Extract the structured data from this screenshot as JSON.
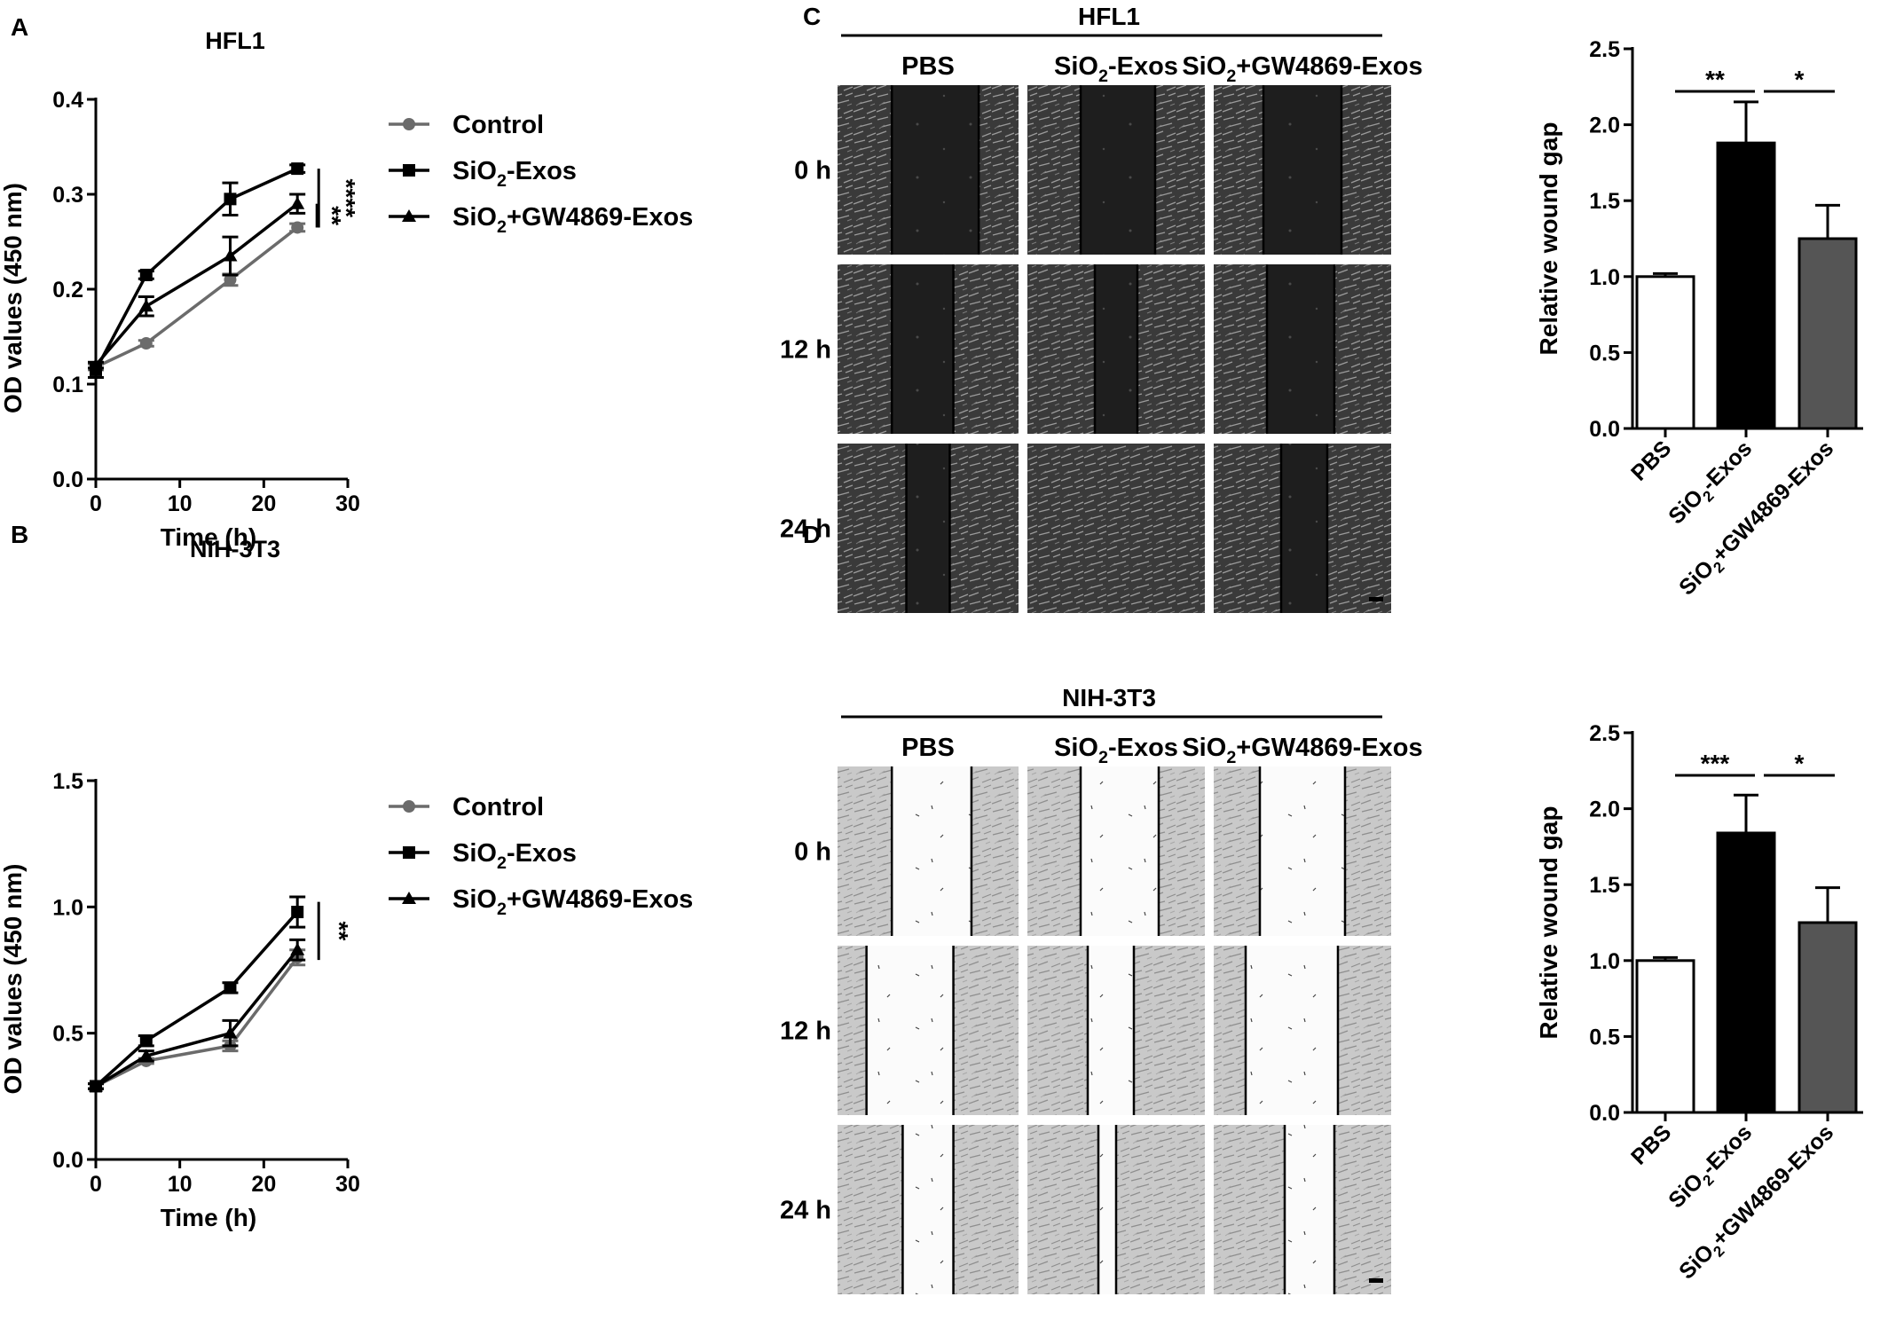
{
  "panels": {
    "A": "A",
    "B": "B",
    "C": "C",
    "D": "D"
  },
  "chart_data": [
    {
      "id": "A",
      "type": "line",
      "title": "HFL1",
      "xlabel": "Time (h)",
      "ylabel": "OD values (450 nm)",
      "xlim": [
        0,
        30
      ],
      "ylim": [
        0,
        0.4
      ],
      "xticks": [
        "0",
        "10",
        "20",
        "30"
      ],
      "yticks": [
        "0.0",
        "0.1",
        "0.2",
        "0.3",
        "0.4"
      ],
      "x": [
        0,
        6,
        16,
        24
      ],
      "series": [
        {
          "name": "Control",
          "marker": "circle",
          "color": "#6b6b6b",
          "values": [
            0.118,
            0.143,
            0.21,
            0.265
          ],
          "errors": [
            0.003,
            0.003,
            0.006,
            0.004
          ]
        },
        {
          "name": "SiO2-Exos",
          "marker": "square",
          "color": "#000000",
          "values": [
            0.115,
            0.215,
            0.295,
            0.327
          ],
          "errors": [
            0.008,
            0.004,
            0.017,
            0.004
          ]
        },
        {
          "name": "SiO2+GW4869-Exos",
          "marker": "triangle",
          "color": "#000000",
          "values": [
            0.12,
            0.182,
            0.235,
            0.29
          ],
          "errors": [
            0.003,
            0.01,
            0.02,
            0.01
          ]
        }
      ],
      "significance": [
        "****",
        "**"
      ],
      "legend": "right"
    },
    {
      "id": "B",
      "type": "line",
      "title": "NIH-3T3",
      "xlabel": "Time (h)",
      "ylabel": "OD values (450 nm)",
      "xlim": [
        0,
        30
      ],
      "ylim": [
        0,
        1.5
      ],
      "xticks": [
        "0",
        "10",
        "20",
        "30"
      ],
      "yticks": [
        "0.0",
        "0.5",
        "1.0",
        "1.5"
      ],
      "x": [
        0,
        6,
        16,
        24
      ],
      "series": [
        {
          "name": "Control",
          "marker": "circle",
          "color": "#6b6b6b",
          "values": [
            0.29,
            0.39,
            0.45,
            0.8
          ],
          "errors": [
            0.01,
            0.01,
            0.02,
            0.03
          ]
        },
        {
          "name": "SiO2-Exos",
          "marker": "square",
          "color": "#000000",
          "values": [
            0.29,
            0.47,
            0.68,
            0.98
          ],
          "errors": [
            0.01,
            0.02,
            0.02,
            0.06
          ]
        },
        {
          "name": "SiO2+GW4869-Exos",
          "marker": "triangle",
          "color": "#000000",
          "values": [
            0.29,
            0.41,
            0.5,
            0.83
          ],
          "errors": [
            0.01,
            0.02,
            0.05,
            0.04
          ]
        }
      ],
      "significance": [
        "**"
      ],
      "legend": "right"
    },
    {
      "id": "C-bar",
      "type": "bar",
      "ylabel": "Relative wound gap",
      "ylim": [
        0,
        2.5
      ],
      "yticks": [
        "0.0",
        "0.5",
        "1.0",
        "1.5",
        "2.0",
        "2.5"
      ],
      "categories": [
        "PBS",
        "SiO2-Exos",
        "SiO2+GW4869-Exos"
      ],
      "values": [
        1.0,
        1.88,
        1.25
      ],
      "errors": [
        0.02,
        0.27,
        0.22
      ],
      "colors": [
        "#ffffff",
        "#000000",
        "#555555"
      ],
      "significance": [
        "**",
        "*"
      ]
    },
    {
      "id": "D-bar",
      "type": "bar",
      "ylabel": "Relative wound gap",
      "ylim": [
        0,
        2.5
      ],
      "yticks": [
        "0.0",
        "0.5",
        "1.0",
        "1.5",
        "2.0",
        "2.5"
      ],
      "categories": [
        "PBS",
        "SiO2-Exos",
        "SiO2+GW4869-Exos"
      ],
      "values": [
        1.0,
        1.84,
        1.25
      ],
      "errors": [
        0.02,
        0.25,
        0.23
      ],
      "colors": [
        "#ffffff",
        "#000000",
        "#555555"
      ],
      "significance": [
        "***",
        "*"
      ]
    }
  ],
  "micrographs": {
    "C": {
      "cell_line": "HFL1",
      "columns": [
        "PBS",
        "SiO2-Exos",
        "SiO2+GW4869-Exos"
      ],
      "rows": [
        "0 h",
        "12 h",
        "24 h"
      ],
      "tone": "dark"
    },
    "D": {
      "cell_line": "NIH-3T3",
      "columns": [
        "PBS",
        "SiO2-Exos",
        "SiO2+GW4869-Exos"
      ],
      "rows": [
        "0 h",
        "12 h",
        "24 h"
      ],
      "tone": "light"
    }
  }
}
